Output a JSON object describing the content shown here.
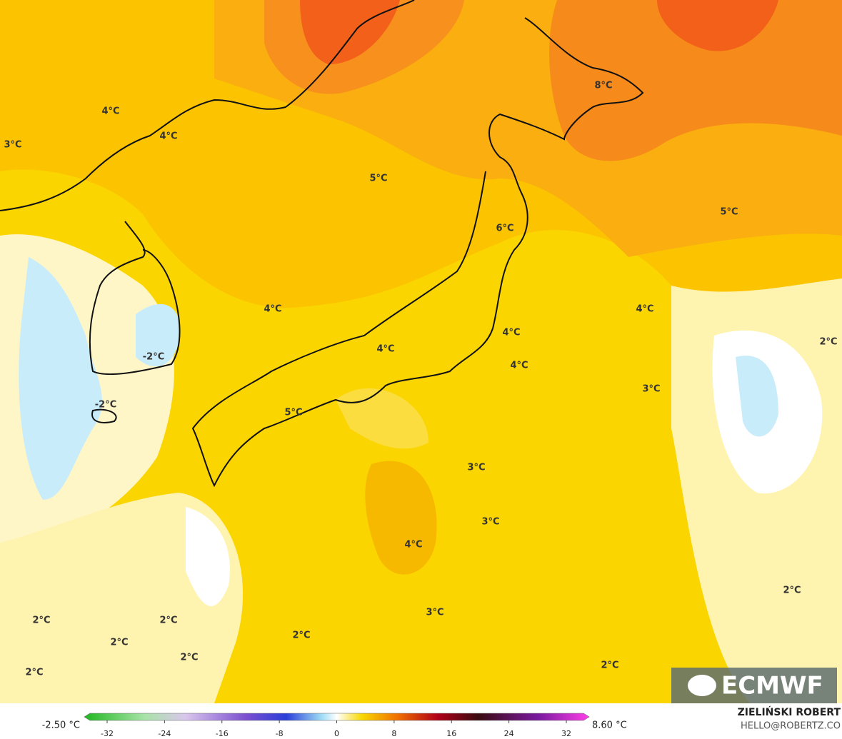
{
  "map": {
    "labels": [
      "4°C",
      "3°C",
      "4°C",
      "5°C",
      "8°C",
      "5°C",
      "6°C",
      "4°C",
      "4°C",
      "4°C",
      "-2°C",
      "4°C",
      "4°C",
      "2°C",
      "3°C",
      "-2°C",
      "5°C",
      "3°C",
      "3°C",
      "4°C",
      "2°C",
      "2°C",
      "2°C",
      "3°C",
      "2°C",
      "2°C",
      "2°C",
      "2°C",
      "2°C"
    ],
    "logo": "ECMWF"
  },
  "colorbar": {
    "min_label": "-2.50 °C",
    "max_label": "8.60 °C",
    "ticks": [
      -32,
      -24,
      -16,
      -8,
      0,
      8,
      16,
      24,
      32
    ]
  },
  "credits": {
    "name": "ZIELIŃSKI ROBERT",
    "contact": "HELLO@ROBERTZ.CO"
  }
}
